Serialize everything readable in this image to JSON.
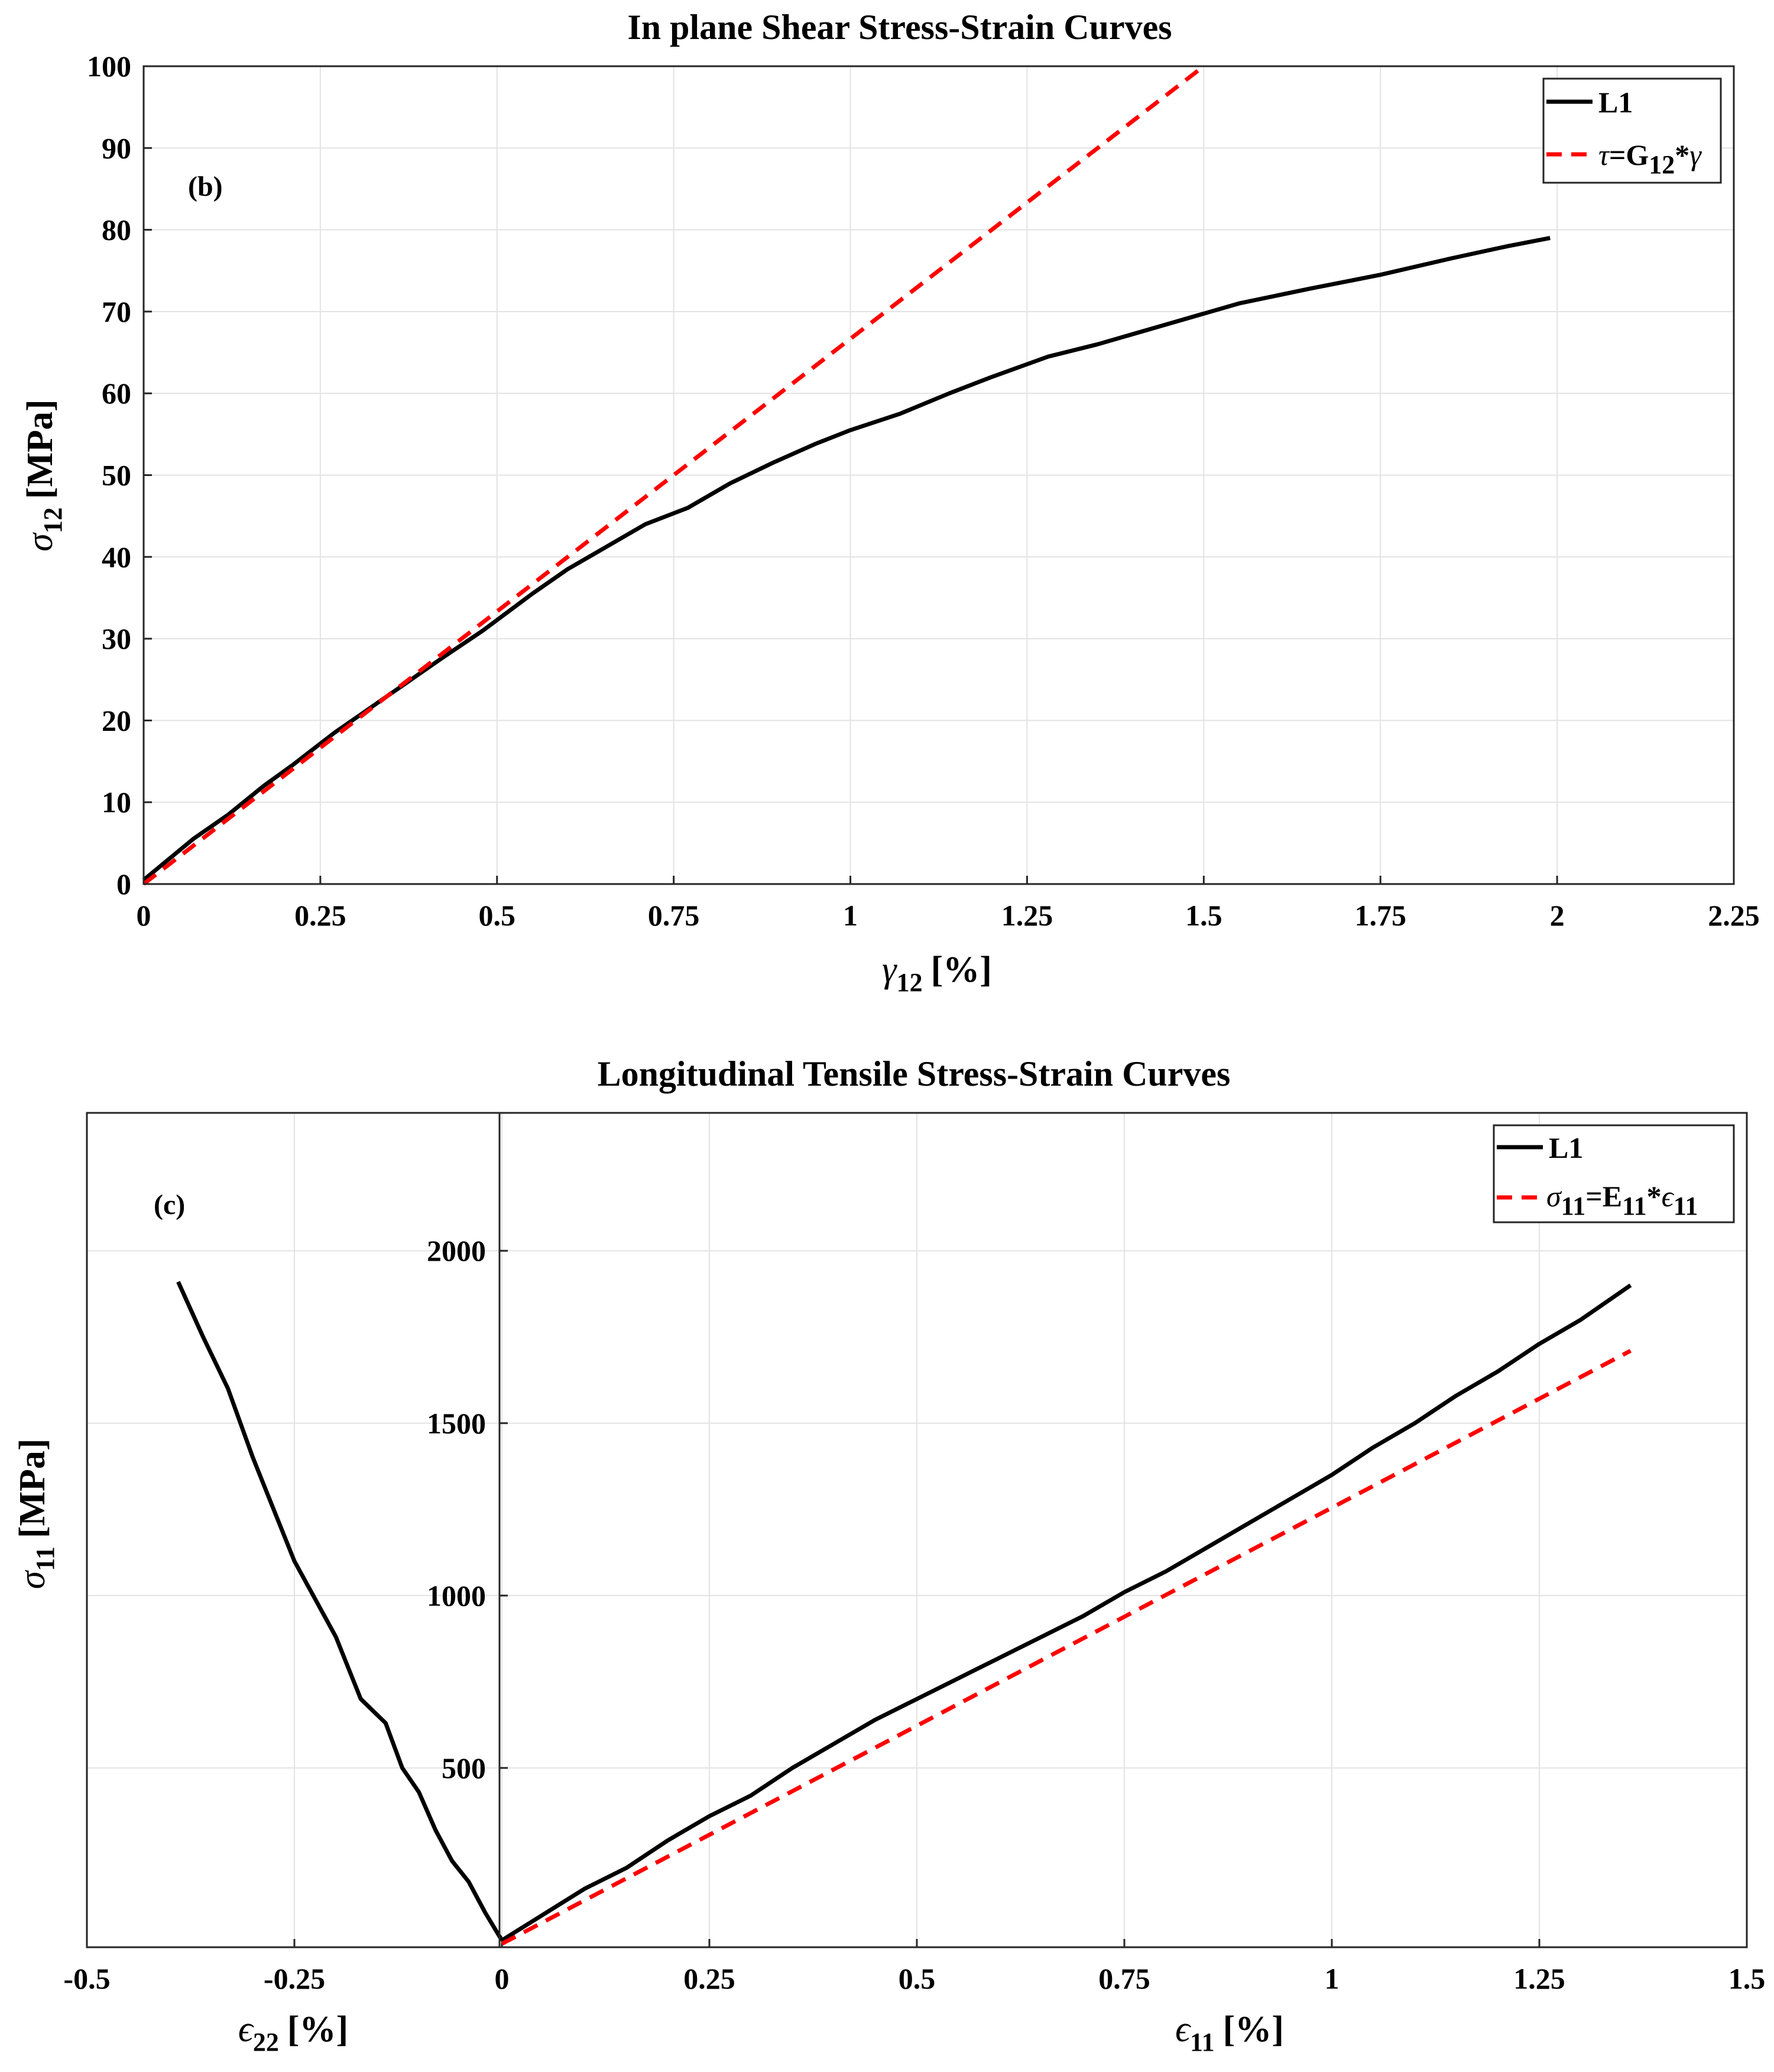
{
  "chart_data": [
    {
      "type": "line",
      "title": "In plane Shear Stress-Strain Curves",
      "annotation": "(b)",
      "xlabel": {
        "symbol": "γ",
        "subscript": "12",
        "unit": "[%]"
      },
      "ylabel": {
        "symbol": "σ",
        "subscript": "12",
        "unit": "[MPa]"
      },
      "xlim": [
        0,
        2.25
      ],
      "ylim": [
        0,
        100
      ],
      "xticks": [
        "0",
        "0.25",
        "0.5",
        "0.75",
        "1",
        "1.25",
        "1.5",
        "1.75",
        "2",
        "2.25"
      ],
      "yticks": [
        "0",
        "10",
        "20",
        "30",
        "40",
        "50",
        "60",
        "70",
        "80",
        "90",
        "100"
      ],
      "grid": true,
      "legend_position": "top-right",
      "legend": [
        {
          "label": "L1"
        },
        {
          "symbol": "τ",
          "middle": "=G",
          "subscript": "12",
          "tail": "*",
          "tail_symbol": "γ"
        }
      ],
      "series": [
        {
          "name": "L1",
          "style": "solid",
          "color": "#000000",
          "x": [
            0,
            0.07,
            0.12,
            0.17,
            0.21,
            0.27,
            0.32,
            0.37,
            0.42,
            0.48,
            0.55,
            0.6,
            0.65,
            0.71,
            0.77,
            0.83,
            0.89,
            0.95,
            1.0,
            1.07,
            1.14,
            1.2,
            1.28,
            1.35,
            1.45,
            1.55,
            1.65,
            1.75,
            1.85,
            1.93,
            1.99
          ],
          "y": [
            0.5,
            5.5,
            8.5,
            12,
            14.5,
            18.5,
            21.5,
            24.5,
            27.5,
            31,
            35.5,
            38.5,
            41,
            44,
            46,
            49,
            51.5,
            53.8,
            55.5,
            57.5,
            60,
            62,
            64.5,
            66,
            68.5,
            71,
            72.8,
            74.5,
            76.5,
            78,
            79
          ]
        },
        {
          "name": "τ=G12*γ",
          "style": "dashed",
          "color": "#ff0000",
          "x": [
            0,
            1.5
          ],
          "y": [
            0,
            100
          ]
        }
      ]
    },
    {
      "type": "line",
      "title": "Longitudinal Tensile Stress-Strain Curves",
      "annotation": "(c)",
      "xlabel": {
        "symbol": "ϵ",
        "subscript": "11",
        "unit": "[%]"
      },
      "xlabel_secondary": {
        "symbol": "ϵ",
        "subscript": "22",
        "unit": "[%]"
      },
      "ylabel": {
        "symbol": "σ",
        "subscript": "11",
        "unit": "[MPa]"
      },
      "xlim": [
        -0.5,
        1.5
      ],
      "ylim": [
        -20,
        2400
      ],
      "xticks": [
        "-0.5",
        "-0.25",
        "0",
        "0.25",
        "0.5",
        "0.75",
        "1",
        "1.25",
        "1.5"
      ],
      "yticks": [
        "500",
        "1000",
        "1500",
        "2000"
      ],
      "grid": true,
      "legend_position": "top-right",
      "legend": [
        {
          "label": "L1"
        },
        {
          "symbol": "σ",
          "middle_sub": "11",
          "middle": "=E",
          "subscript": "11",
          "tail": "*",
          "tail_symbol": "ϵ",
          "tail_sub": "11"
        }
      ],
      "series": [
        {
          "name": "L1 (ϵ11)",
          "style": "solid",
          "color": "#000000",
          "x": [
            0,
            0.1,
            0.15,
            0.2,
            0.25,
            0.3,
            0.35,
            0.4,
            0.45,
            0.5,
            0.55,
            0.6,
            0.65,
            0.7,
            0.75,
            0.8,
            0.85,
            0.9,
            0.95,
            1.0,
            1.05,
            1.1,
            1.15,
            1.2,
            1.25,
            1.3,
            1.36
          ],
          "y": [
            0,
            150,
            210,
            290,
            360,
            420,
            500,
            570,
            640,
            700,
            760,
            820,
            880,
            940,
            1010,
            1070,
            1140,
            1210,
            1280,
            1350,
            1430,
            1500,
            1580,
            1650,
            1730,
            1800,
            1900
          ]
        },
        {
          "name": "L1 (ϵ22)",
          "style": "solid",
          "color": "#000000",
          "x": [
            0,
            -0.02,
            -0.04,
            -0.06,
            -0.08,
            -0.1,
            -0.12,
            -0.14,
            -0.17,
            -0.2,
            -0.25,
            -0.3,
            -0.33,
            -0.36,
            -0.39
          ],
          "y": [
            0,
            80,
            170,
            230,
            320,
            430,
            500,
            630,
            700,
            880,
            1100,
            1400,
            1600,
            1750,
            1910
          ]
        },
        {
          "name": "σ11=E11*ϵ11",
          "style": "dashed",
          "color": "#ff0000",
          "x": [
            0,
            1.36
          ],
          "y": [
            -10,
            1710
          ]
        }
      ]
    }
  ]
}
